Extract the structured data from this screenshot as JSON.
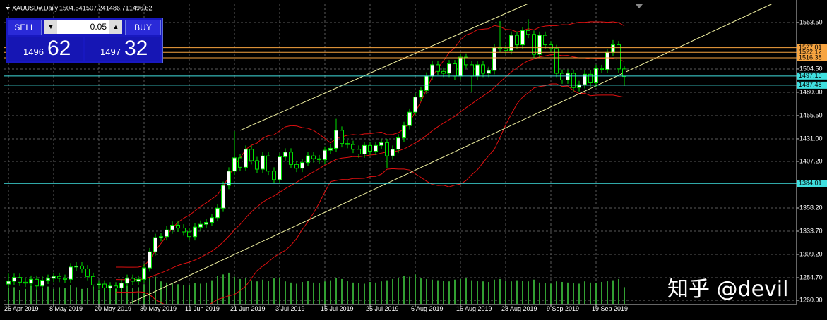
{
  "chart_data": {
    "type": "candlestick",
    "symbol": "XAUUSD#,Daily",
    "ylim": [
      1256.5,
      1573.5
    ],
    "yticks": [
      {
        "value": 1553.5,
        "label": "1553.50"
      },
      {
        "value": 1504.5,
        "label": "1504.50"
      },
      {
        "value": 1480,
        "label": "1480.00"
      },
      {
        "value": 1455.5,
        "label": "1455.50"
      },
      {
        "value": 1431,
        "label": "1431.00"
      },
      {
        "value": 1407.2,
        "label": "1407.20"
      },
      {
        "value": 1358.2,
        "label": "1358.20"
      },
      {
        "value": 1333.7,
        "label": "1333.70"
      },
      {
        "value": 1309.2,
        "label": "1309.20"
      },
      {
        "value": 1284.7,
        "label": "1284.70"
      },
      {
        "value": 1260.9,
        "label": "1260.90"
      }
    ],
    "grid": true,
    "dates": [
      "26 Apr 2019",
      "8 May 2019",
      "20 May 2019",
      "30 May 2019",
      "11 Jun 2019",
      "21 Jun 2019",
      "3 Jul 2019",
      "15 Jul 2019",
      "25 Jul 2019",
      "6 Aug 2019",
      "16 Aug 2019",
      "28 Aug 2019",
      "9 Sep 2019",
      "19 Sep 2019"
    ],
    "candles": [
      [
        1278,
        1289,
        1274,
        1281
      ],
      [
        1281,
        1289,
        1277,
        1285
      ],
      [
        1285,
        1289,
        1276,
        1280
      ],
      [
        1280,
        1284,
        1275,
        1279
      ],
      [
        1279,
        1287,
        1275,
        1283
      ],
      [
        1283,
        1287,
        1272,
        1276
      ],
      [
        1276,
        1286,
        1272,
        1282
      ],
      [
        1282,
        1288,
        1278,
        1284
      ],
      [
        1284,
        1290,
        1280,
        1286
      ],
      [
        1286,
        1290,
        1280,
        1284
      ],
      [
        1284,
        1288,
        1279,
        1283
      ],
      [
        1283,
        1300,
        1279,
        1296
      ],
      [
        1296,
        1301,
        1292,
        1297
      ],
      [
        1297,
        1301,
        1290,
        1294
      ],
      [
        1294,
        1298,
        1282,
        1286
      ],
      [
        1286,
        1290,
        1273,
        1277
      ],
      [
        1277,
        1282,
        1273,
        1278
      ],
      [
        1278,
        1282,
        1270,
        1274
      ],
      [
        1274,
        1280,
        1270,
        1276
      ],
      [
        1276,
        1280,
        1270,
        1274
      ],
      [
        1274,
        1283,
        1270,
        1279
      ],
      [
        1279,
        1288,
        1275,
        1284
      ],
      [
        1284,
        1288,
        1277,
        1281
      ],
      [
        1281,
        1287,
        1277,
        1283
      ],
      [
        1283,
        1299,
        1279,
        1295
      ],
      [
        1295,
        1316,
        1291,
        1312
      ],
      [
        1312,
        1331,
        1308,
        1327
      ],
      [
        1327,
        1332,
        1323,
        1328
      ],
      [
        1328,
        1339,
        1324,
        1335
      ],
      [
        1335,
        1344,
        1331,
        1340
      ],
      [
        1340,
        1344,
        1333,
        1337
      ],
      [
        1337,
        1341,
        1329,
        1333
      ],
      [
        1333,
        1337,
        1324,
        1328
      ],
      [
        1328,
        1342,
        1324,
        1338
      ],
      [
        1338,
        1345,
        1334,
        1341
      ],
      [
        1341,
        1347,
        1337,
        1343
      ],
      [
        1343,
        1352,
        1339,
        1348
      ],
      [
        1348,
        1362,
        1344,
        1358
      ],
      [
        1358,
        1386,
        1354,
        1382
      ],
      [
        1382,
        1401,
        1378,
        1397
      ],
      [
        1397,
        1439,
        1393,
        1411
      ],
      [
        1411,
        1415,
        1397,
        1401
      ],
      [
        1401,
        1424,
        1397,
        1420
      ],
      [
        1420,
        1424,
        1404,
        1408
      ],
      [
        1408,
        1412,
        1395,
        1399
      ],
      [
        1399,
        1417,
        1395,
        1413
      ],
      [
        1413,
        1417,
        1393,
        1397
      ],
      [
        1397,
        1401,
        1384,
        1388
      ],
      [
        1388,
        1416,
        1384,
        1412
      ],
      [
        1412,
        1421,
        1408,
        1417
      ],
      [
        1417,
        1421,
        1400,
        1404
      ],
      [
        1404,
        1408,
        1396,
        1400
      ],
      [
        1400,
        1410,
        1396,
        1406
      ],
      [
        1406,
        1417,
        1402,
        1413
      ],
      [
        1413,
        1417,
        1406,
        1410
      ],
      [
        1410,
        1414,
        1405,
        1409
      ],
      [
        1409,
        1423,
        1405,
        1419
      ],
      [
        1419,
        1425,
        1415,
        1421
      ],
      [
        1421,
        1452,
        1417,
        1440
      ],
      [
        1440,
        1444,
        1422,
        1426
      ],
      [
        1426,
        1430,
        1421,
        1425
      ],
      [
        1425,
        1429,
        1416,
        1420
      ],
      [
        1420,
        1424,
        1411,
        1415
      ],
      [
        1415,
        1428,
        1411,
        1424
      ],
      [
        1424,
        1428,
        1414,
        1418
      ],
      [
        1418,
        1428,
        1414,
        1424
      ],
      [
        1424,
        1431,
        1420,
        1427
      ],
      [
        1427,
        1431,
        1400,
        1413
      ],
      [
        1413,
        1424,
        1409,
        1420
      ],
      [
        1420,
        1436,
        1416,
        1432
      ],
      [
        1432,
        1449,
        1428,
        1445
      ],
      [
        1445,
        1463,
        1441,
        1459
      ],
      [
        1459,
        1479,
        1455,
        1475
      ],
      [
        1475,
        1486,
        1471,
        1482
      ],
      [
        1482,
        1501,
        1478,
        1497
      ],
      [
        1497,
        1513,
        1493,
        1509
      ],
      [
        1509,
        1513,
        1498,
        1502
      ],
      [
        1502,
        1506,
        1496,
        1500
      ],
      [
        1500,
        1514,
        1496,
        1510
      ],
      [
        1510,
        1514,
        1493,
        1497
      ],
      [
        1497,
        1521,
        1493,
        1517
      ],
      [
        1517,
        1521,
        1505,
        1509
      ],
      [
        1509,
        1513,
        1480,
        1497
      ],
      [
        1497,
        1513,
        1493,
        1509
      ],
      [
        1509,
        1513,
        1496,
        1500
      ],
      [
        1500,
        1507,
        1496,
        1503
      ],
      [
        1503,
        1531,
        1499,
        1527
      ],
      [
        1527,
        1555,
        1522,
        1526
      ],
      [
        1526,
        1530,
        1520,
        1524
      ],
      [
        1524,
        1544,
        1520,
        1540
      ],
      [
        1540,
        1544,
        1526,
        1530
      ],
      [
        1530,
        1549,
        1526,
        1545
      ],
      [
        1545,
        1557,
        1537,
        1541
      ],
      [
        1541,
        1545,
        1516,
        1520
      ],
      [
        1520,
        1544,
        1516,
        1540
      ],
      [
        1540,
        1544,
        1526,
        1530
      ],
      [
        1530,
        1534,
        1522,
        1526
      ],
      [
        1526,
        1530,
        1496,
        1500
      ],
      [
        1500,
        1504,
        1489,
        1493
      ],
      [
        1493,
        1504,
        1489,
        1500
      ],
      [
        1500,
        1504,
        1481,
        1485
      ],
      [
        1485,
        1492,
        1481,
        1488
      ],
      [
        1488,
        1503,
        1484,
        1499
      ],
      [
        1499,
        1503,
        1486,
        1490
      ],
      [
        1490,
        1509,
        1486,
        1505
      ],
      [
        1505,
        1509,
        1500,
        1504
      ],
      [
        1504,
        1526,
        1500,
        1522
      ],
      [
        1522,
        1535,
        1518,
        1530
      ],
      [
        1530,
        1534,
        1500,
        1504.54
      ],
      [
        1504.54,
        1507.24,
        1486.71,
        1496.62
      ]
    ],
    "volumes": [
      28,
      30,
      25,
      27,
      32,
      26,
      29,
      31,
      27,
      30,
      28,
      33,
      30,
      27,
      29,
      31,
      26,
      28,
      30,
      27,
      29,
      32,
      28,
      30,
      35,
      45,
      48,
      40,
      38,
      36,
      35,
      34,
      33,
      37,
      36,
      38,
      42,
      50,
      52,
      55,
      48,
      44,
      46,
      42,
      40,
      43,
      41,
      45,
      47,
      40,
      38,
      36,
      39,
      41,
      38,
      37,
      40,
      42,
      46,
      44,
      41,
      38,
      37,
      36,
      39,
      38,
      40,
      42,
      44,
      46,
      50,
      48,
      52,
      45,
      44,
      43,
      42,
      41,
      40,
      43,
      44,
      45,
      42,
      41,
      40,
      39,
      43,
      44,
      41,
      40,
      42,
      41,
      40,
      43,
      38,
      37,
      36,
      40,
      39,
      38,
      37,
      36,
      40,
      38,
      37,
      39,
      41,
      42,
      44,
      30
    ],
    "price_lines": [
      {
        "value": 1527.01,
        "label": "1527.01",
        "color": "#f7a440"
      },
      {
        "value": 1522.12,
        "label": "1522.12",
        "color": "#f7a440"
      },
      {
        "value": 1516.38,
        "label": "1516.38",
        "color": "#f7a440"
      },
      {
        "value": 1497.16,
        "label": "1497.16",
        "color": "#40e0e0"
      },
      {
        "value": 1487.48,
        "label": "1487.48",
        "color": "#40e0e0"
      },
      {
        "value": 1384.01,
        "label": "1384.01",
        "color": "#40e0e0"
      }
    ],
    "trend_lines": [
      {
        "from": {
          "bar": 41,
          "price": 1439.9
        },
        "to": {
          "bar": 92,
          "price": 1573.5
        }
      },
      {
        "from": {
          "bar": 21.5,
          "price": 1257.9
        },
        "to": {
          "bar": 135.25,
          "price": 1573.5
        }
      }
    ],
    "up_color": "#ffffff",
    "down_color": "#000000",
    "wick_color": "#00e000",
    "volume_color": "#32a032",
    "band_color": "#e01010",
    "trend_color": "#f0f0a0"
  },
  "trade_panel": {
    "sell": "SELL",
    "buy": "BUY",
    "lots": "0.05",
    "bid_big": "1496",
    "bid_small": "62",
    "ask_big": "1497",
    "ask_small": "32"
  },
  "watermark": "知乎 @devil"
}
